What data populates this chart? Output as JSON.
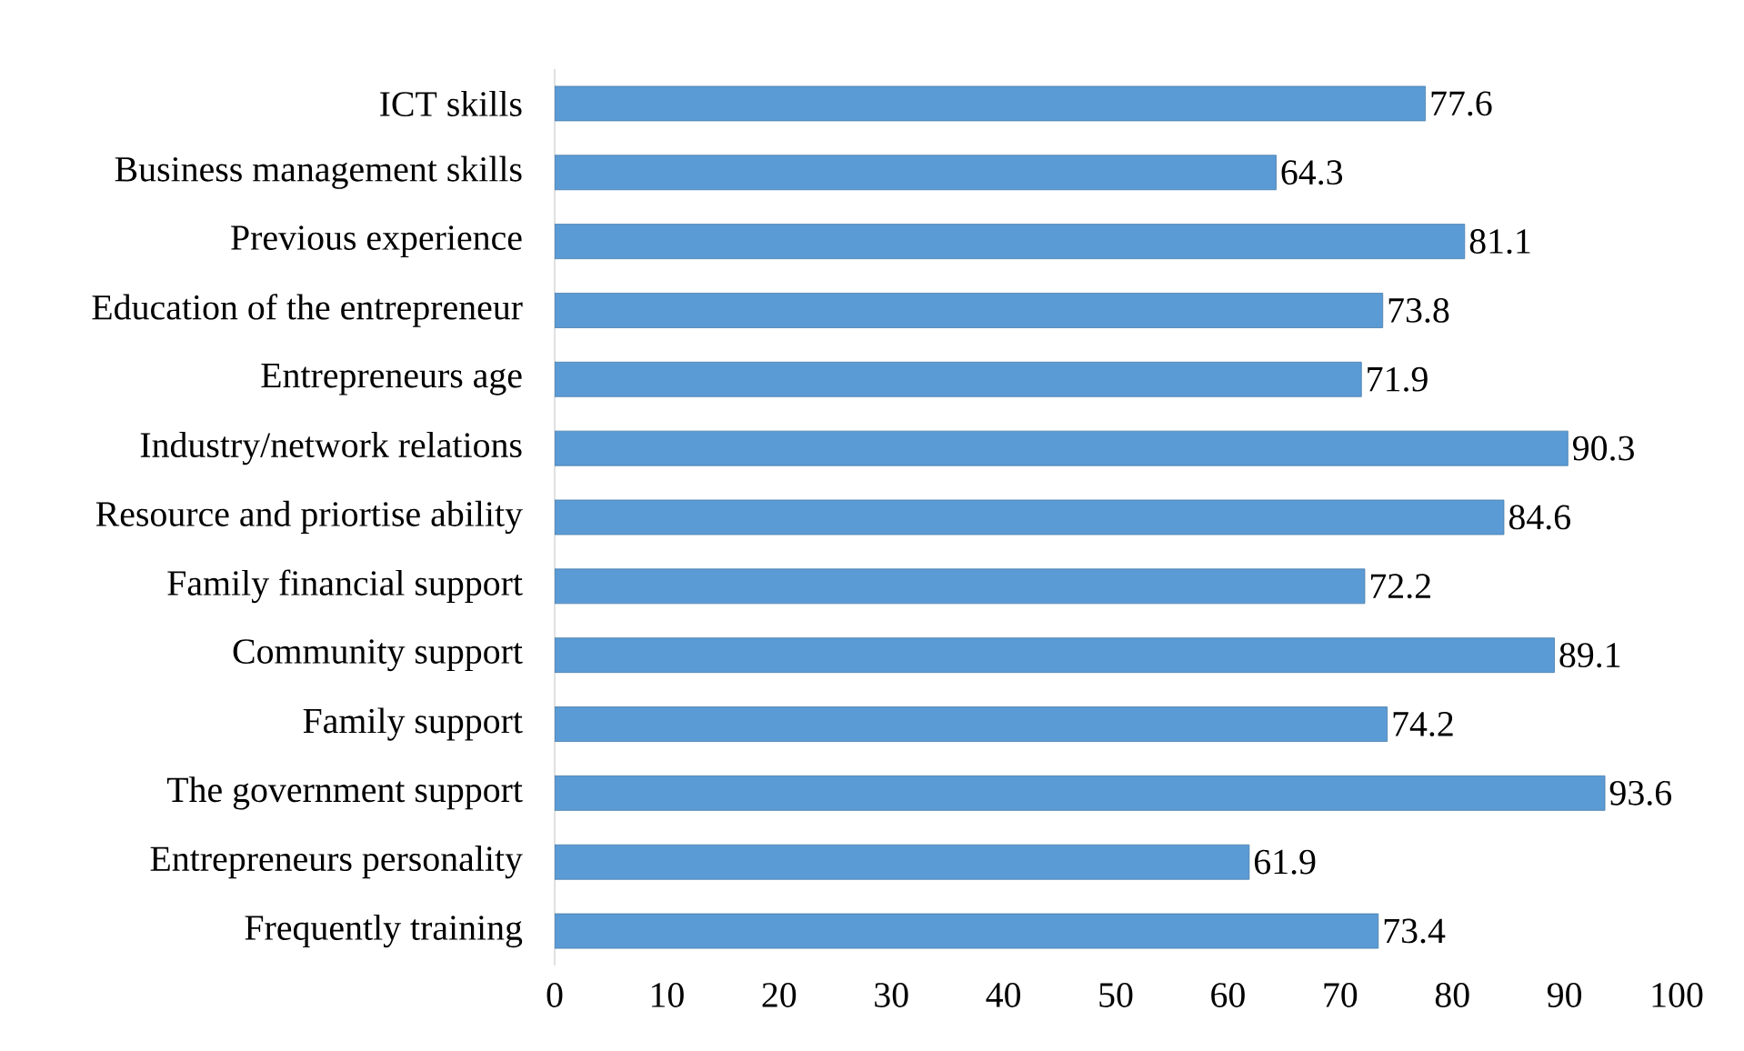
{
  "chart_data": {
    "type": "bar",
    "orientation": "horizontal",
    "categories": [
      "ICT skills",
      "Business management skills",
      "Previous experience",
      "Education of the entrepreneur",
      "Entrepreneurs age",
      "Industry/network relations",
      "Resource and priortise ability",
      "Family financial support",
      "Community support",
      "Family support",
      "The government support",
      "Entrepreneurs personality",
      "Frequently training"
    ],
    "values": [
      77.6,
      64.3,
      81.1,
      73.8,
      71.9,
      90.3,
      84.6,
      72.2,
      89.1,
      74.2,
      93.6,
      61.9,
      73.4
    ],
    "color": "#5b9bd5",
    "xlim": [
      0,
      100
    ],
    "xticks": [
      0,
      10,
      20,
      30,
      40,
      50,
      60,
      70,
      80,
      90,
      100
    ],
    "data_labels": true,
    "grid": false
  }
}
